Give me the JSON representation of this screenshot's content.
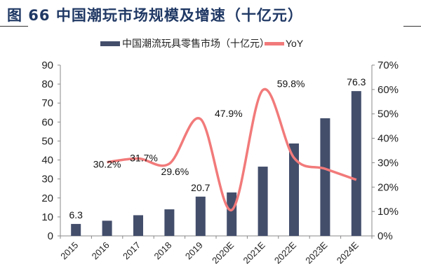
{
  "figure_title": "图 66  中国潮玩市场规模及增速（十亿元）",
  "chart_data": {
    "type": "bar+line",
    "categories": [
      "2015",
      "2016",
      "2017",
      "2018",
      "2019",
      "2020E",
      "2021E",
      "2022E",
      "2023E",
      "2024E"
    ],
    "series": [
      {
        "name": "中国潮流玩具零售市场（十亿元）",
        "type": "bar",
        "axis": "left",
        "color": "#434e6b",
        "values": [
          6.3,
          8.0,
          10.9,
          14.0,
          20.7,
          22.9,
          36.5,
          48.7,
          62.0,
          76.3
        ],
        "data_labels": {
          "0": "6.3",
          "4": "20.7",
          "9": "76.3"
        }
      },
      {
        "name": "YoY",
        "type": "line",
        "axis": "right",
        "color": "#f27a7a",
        "values": [
          null,
          30.2,
          31.7,
          29.6,
          47.9,
          10.6,
          59.8,
          32.0,
          27.5,
          23.0
        ],
        "data_labels": {
          "1": "30.2%",
          "2": "31.7%",
          "3": "29.6%",
          "4": "47.9%",
          "6": "59.8%"
        }
      }
    ],
    "left_axis": {
      "ylim": [
        0,
        90
      ],
      "ticks": [
        "0",
        "10",
        "20",
        "30",
        "40",
        "50",
        "60",
        "70",
        "80",
        "90"
      ]
    },
    "right_axis": {
      "ylim": [
        0,
        70
      ],
      "ticks": [
        "0%",
        "10%",
        "20%",
        "30%",
        "40%",
        "50%",
        "60%",
        "70%"
      ]
    },
    "legend": "top",
    "grid": false
  }
}
